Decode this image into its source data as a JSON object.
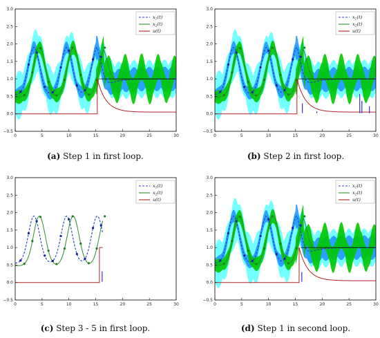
{
  "chart_data": [
    {
      "type": "line",
      "panel": "a",
      "caption_label": "(a)",
      "caption_text": "Step 1 in first loop.",
      "xlim": [
        0,
        30
      ],
      "ylim": [
        -0.5,
        3.0
      ],
      "xticks": [
        "0",
        "5",
        "10",
        "15",
        "20",
        "25",
        "30"
      ],
      "yticks": [
        "−0.5",
        "0.0",
        "0.5",
        "1.0",
        "1.5",
        "2.0",
        "2.5",
        "3.0"
      ],
      "legend_position": "top-right",
      "legend": [
        "x_1(t)",
        "x_2(t)",
        "u(t)"
      ],
      "series_colors": {
        "x1": "#1f3fbf",
        "x2": "#2e8b2e",
        "u": "#b22222",
        "band1": "#1e90ff",
        "band2": "#00c800",
        "halo": "#00ffff"
      },
      "t_end": 30,
      "show_bands": true,
      "bands_end": 30,
      "step_time": 15.3,
      "u_decay": true,
      "points_end": 16,
      "marks": []
    },
    {
      "type": "line",
      "panel": "b",
      "caption_label": "(b)",
      "caption_text": "Step 2 in first loop.",
      "xlim": [
        0,
        30
      ],
      "ylim": [
        -0.5,
        3.0
      ],
      "xticks": [
        "0",
        "5",
        "10",
        "15",
        "20",
        "25",
        "30"
      ],
      "yticks": [
        "−0.5",
        "0.0",
        "0.5",
        "1.0",
        "1.5",
        "2.0",
        "2.5",
        "3.0"
      ],
      "legend_position": "top-right",
      "legend": [
        "x_1(t)",
        "x_2(t)",
        "u(t)"
      ],
      "series_colors": {
        "x1": "#1f3fbf",
        "x2": "#2e8b2e",
        "u": "#b22222",
        "band1": "#1e90ff",
        "band2": "#00c800",
        "halo": "#00ffff"
      },
      "t_end": 30,
      "show_bands": true,
      "bands_end": 30,
      "step_time": 15.3,
      "u_decay": true,
      "points_end": 16,
      "marks": [
        {
          "x": 16.3,
          "h": 0.28,
          "color": "#3030d0"
        },
        {
          "x": 19.0,
          "h": 0.05,
          "color": "#3030d0"
        },
        {
          "x": 27.0,
          "h": 0.55,
          "color": "#3030d0"
        },
        {
          "x": 27.4,
          "h": 0.35,
          "color": "#3030d0"
        },
        {
          "x": 28.8,
          "h": 0.2,
          "color": "#3030d0"
        }
      ]
    },
    {
      "type": "line",
      "panel": "c",
      "caption_label": "(c)",
      "caption_text": "Step 3 - 5 in first loop.",
      "xlim": [
        0,
        30
      ],
      "ylim": [
        -0.5,
        3.0
      ],
      "xticks": [
        "0",
        "5",
        "10",
        "15",
        "20",
        "25",
        "30"
      ],
      "yticks": [
        "−0.5",
        "0.0",
        "0.5",
        "1.0",
        "1.5",
        "2.0",
        "2.5",
        "3.0"
      ],
      "legend_position": "top-right",
      "legend": [
        "x_1(t)",
        "x_2(t)",
        "u(t)"
      ],
      "series_colors": {
        "x1": "#1f3fbf",
        "x2": "#2e8b2e",
        "u": "#b22222",
        "band1": "#1e90ff",
        "band2": "#00c800",
        "halo": "#00ffff"
      },
      "t_end": 16.3,
      "show_bands": false,
      "bands_end": 0,
      "step_time": 15.7,
      "u_decay": false,
      "points_end": 16.3,
      "marks": [
        {
          "x": 16.2,
          "h": 0.3,
          "color": "#3030d0"
        }
      ]
    },
    {
      "type": "line",
      "panel": "d",
      "caption_label": "(d)",
      "caption_text": "Step 1 in second loop.",
      "xlim": [
        0,
        30
      ],
      "ylim": [
        -0.5,
        3.0
      ],
      "xticks": [
        "0",
        "5",
        "10",
        "15",
        "20",
        "25",
        "30"
      ],
      "yticks": [
        "−0.5",
        "0.0",
        "0.5",
        "1.0",
        "1.5",
        "2.0",
        "2.5",
        "3.0"
      ],
      "legend_position": "top-right",
      "legend": [
        "x_1(t)",
        "x_2(t)",
        "u(t)"
      ],
      "series_colors": {
        "x1": "#1f3fbf",
        "x2": "#2e8b2e",
        "u": "#b22222",
        "band1": "#1e90ff",
        "band2": "#00c800",
        "halo": "#00ffff"
      },
      "t_end": 30,
      "show_bands": true,
      "bands_end": 30,
      "step_time": 15.7,
      "u_decay": true,
      "points_end": 16.5,
      "marks": [
        {
          "x": 16.2,
          "h": 0.28,
          "color": "#3030d0"
        }
      ]
    }
  ]
}
